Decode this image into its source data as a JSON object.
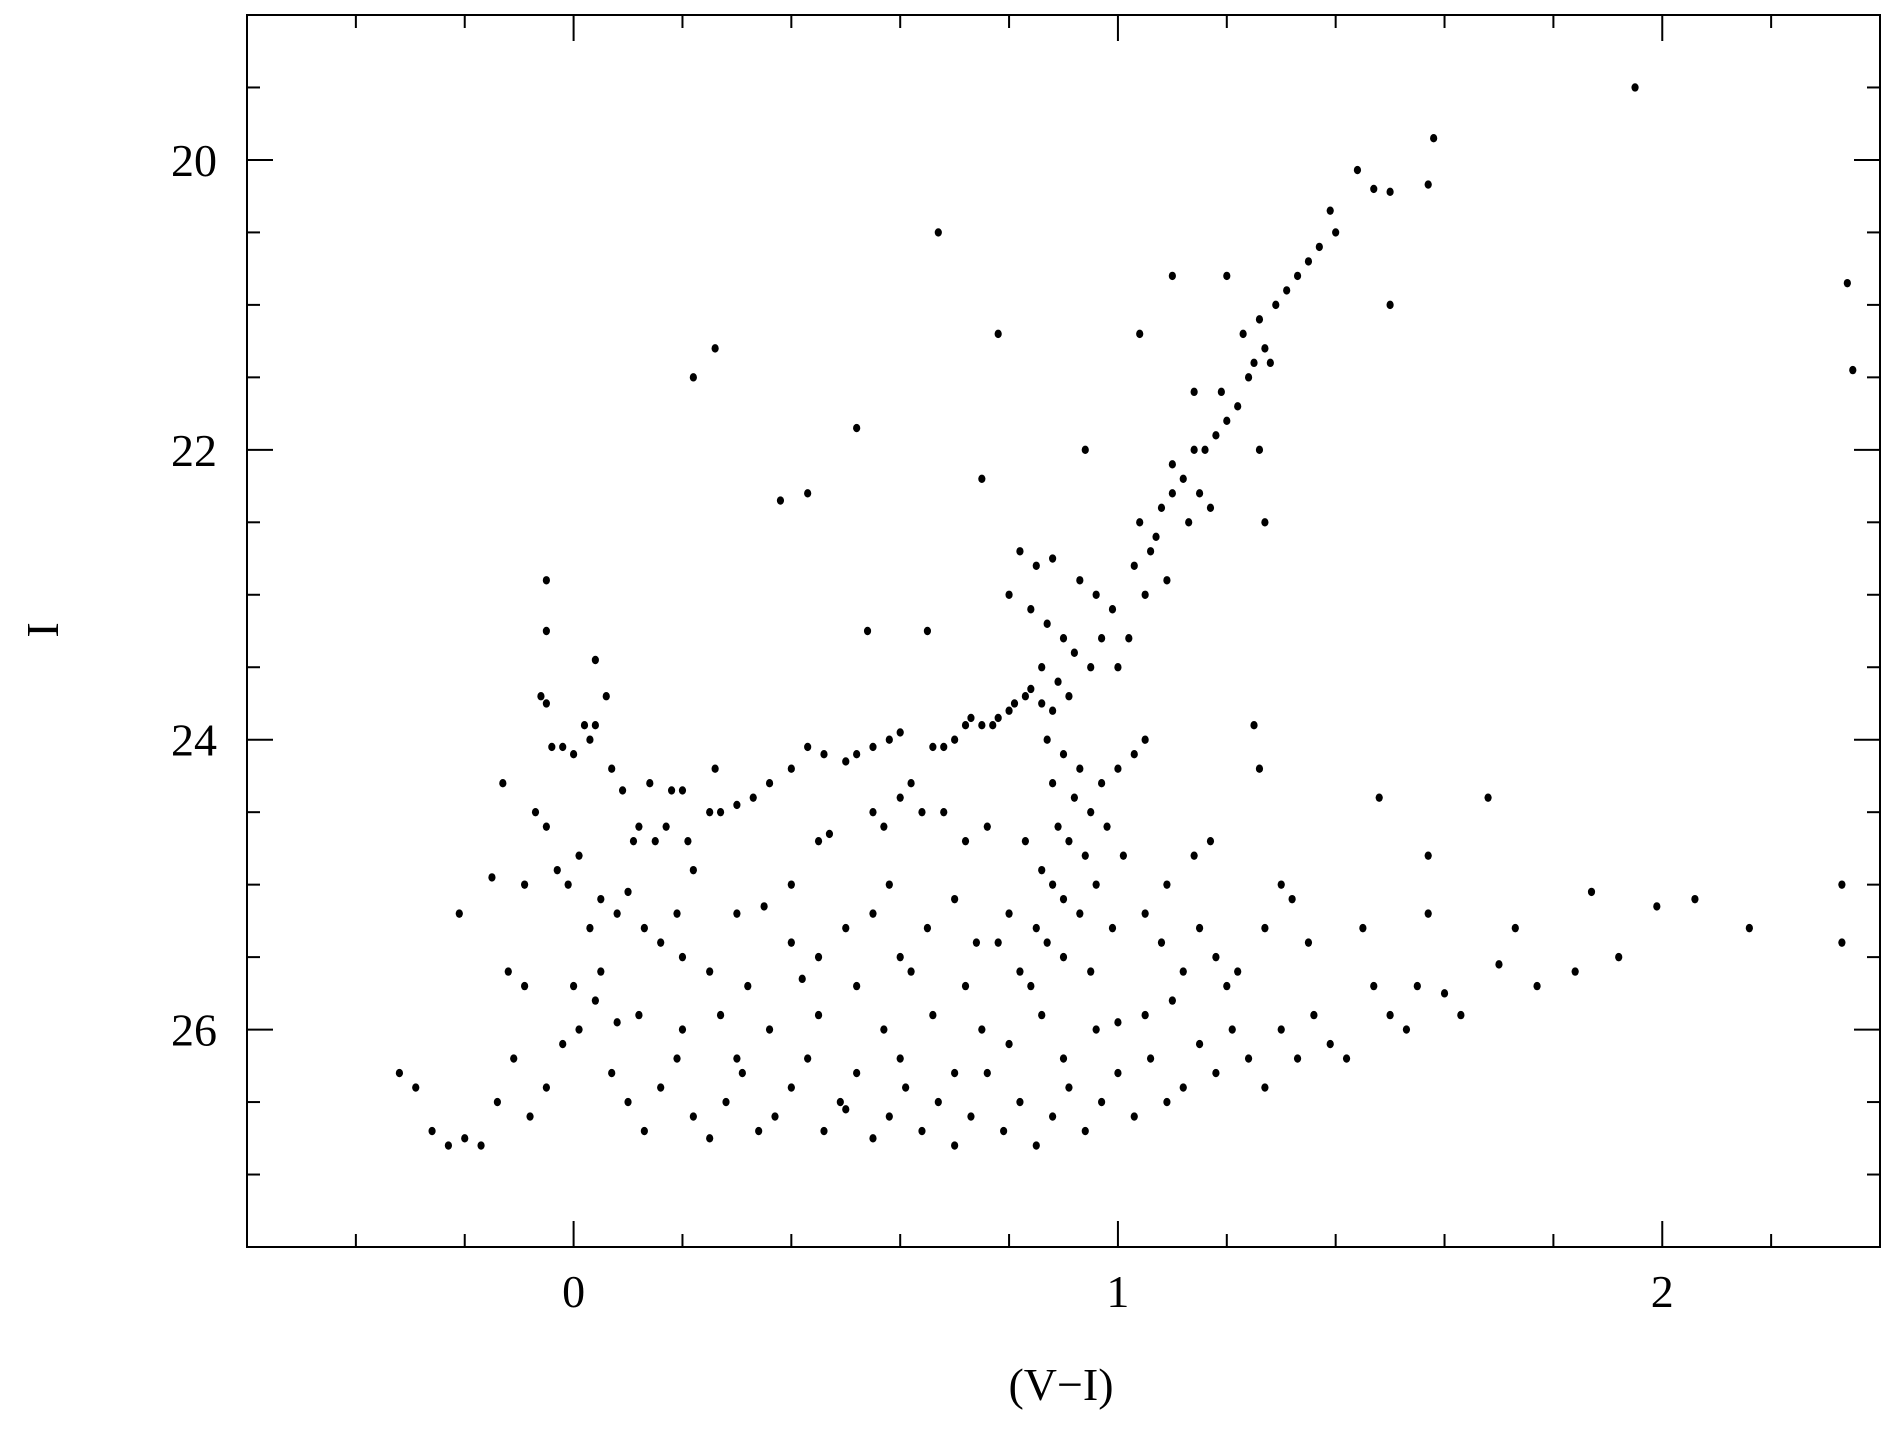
{
  "chart_data": {
    "type": "scatter",
    "xlabel": "(V−I)",
    "ylabel": "I",
    "xlim": [
      -0.6,
      2.4
    ],
    "ylim": [
      27.5,
      19.0
    ],
    "xticks": [
      0,
      1,
      2
    ],
    "yticks": [
      20,
      22,
      24,
      26
    ],
    "xminorticks": [
      -0.4,
      -0.2,
      0.2,
      0.4,
      0.6,
      0.8,
      1.2,
      1.4,
      1.6,
      1.8,
      2.2
    ],
    "yminorticks": [
      19.5,
      20.5,
      21,
      21.5,
      22.5,
      23,
      23.5,
      24.5,
      25,
      25.5,
      26.5,
      27
    ],
    "series": [
      {
        "color": "#000000",
        "x": [
          1.0,
          1.02,
          1.05,
          1.03,
          1.07,
          1.08,
          1.1,
          1.12,
          1.1,
          1.14,
          1.13,
          1.06,
          1.09,
          1.15,
          1.16,
          1.18,
          1.2,
          1.22,
          1.19,
          1.24,
          1.25,
          1.27,
          1.26,
          1.29,
          1.31,
          1.33,
          1.35,
          1.37,
          1.4,
          1.39,
          1.44,
          1.47,
          1.5,
          1.57,
          1.58,
          1.14,
          1.23,
          1.28,
          1.17,
          1.04,
          1.95,
          0.67,
          1.1,
          1.2,
          0.78,
          0.22,
          0.26,
          1.04,
          0.52,
          0.38,
          0.43,
          0.75,
          0.94,
          2.34,
          2.35,
          1.5,
          1.27,
          1.26,
          -0.05,
          -0.05,
          0.04,
          0.54,
          0.65,
          1.25,
          1.26,
          1.48,
          1.68,
          0.82,
          0.85,
          0.88,
          0.8,
          0.84,
          0.87,
          0.9,
          0.92,
          0.86,
          0.89,
          0.83,
          0.86,
          0.88,
          0.84,
          0.91,
          0.95,
          0.97,
          0.99,
          0.96,
          0.93,
          0.8,
          0.78,
          0.75,
          0.72,
          0.7,
          0.68,
          0.66,
          0.73,
          0.77,
          0.81,
          0.6,
          0.58,
          0.55,
          0.52,
          0.5,
          0.46,
          0.43,
          0.4,
          0.36,
          0.33,
          0.3,
          0.27,
          0.25,
          0.26,
          0.45,
          0.47,
          0.55,
          0.57,
          0.62,
          0.64,
          -0.06,
          -0.05,
          -0.04,
          -0.02,
          0.0,
          0.02,
          0.04,
          0.06,
          0.03,
          -0.13,
          0.07,
          0.09,
          0.14,
          0.18,
          0.2,
          0.12,
          0.15,
          0.17,
          0.21,
          0.22,
          -0.07,
          -0.05,
          -0.03,
          -0.01,
          0.01,
          0.05,
          0.08,
          0.11,
          0.19,
          -0.09,
          -0.15,
          0.03,
          0.1,
          0.13,
          0.16,
          0.87,
          0.9,
          0.93,
          0.88,
          0.92,
          0.95,
          0.89,
          0.91,
          0.94,
          0.86,
          0.88,
          0.9,
          0.93,
          0.85,
          0.87,
          0.9,
          0.82,
          0.84,
          0.97,
          1.0,
          1.03,
          1.05,
          0.98,
          1.01,
          0.96,
          0.99,
          0.8,
          0.83,
          0.78,
          0.95,
          0.3,
          0.35,
          0.4,
          0.45,
          0.5,
          0.55,
          0.6,
          0.65,
          0.7,
          0.74,
          0.25,
          0.32,
          0.42,
          0.52,
          0.62,
          0.72,
          1.05,
          1.08,
          1.12,
          1.15,
          1.18,
          1.2,
          1.22,
          1.09,
          1.14,
          1.17,
          1.1,
          1.3,
          1.32,
          1.27,
          1.35,
          0.68,
          0.72,
          0.76,
          0.6,
          0.58,
          0.4,
          0.2,
          0.05,
          0.0,
          -0.32,
          -0.29,
          -0.26,
          -0.23,
          -0.2,
          -0.17,
          -0.14,
          -0.11,
          -0.08,
          -0.05,
          -0.02,
          0.01,
          0.04,
          0.07,
          0.1,
          0.13,
          0.16,
          0.19,
          0.22,
          0.25,
          0.28,
          0.31,
          0.34,
          0.37,
          0.4,
          0.43,
          0.46,
          0.49,
          0.52,
          0.55,
          0.58,
          0.61,
          0.64,
          0.67,
          0.7,
          0.73,
          0.76,
          0.79,
          0.82,
          0.85,
          0.88,
          0.91,
          0.94,
          0.97,
          1.0,
          1.03,
          1.06,
          1.09,
          1.12,
          1.15,
          1.18,
          1.21,
          1.24,
          1.27,
          1.3,
          1.33,
          1.36,
          1.39,
          0.12,
          0.27,
          0.36,
          0.45,
          0.57,
          0.66,
          0.75,
          0.86,
          0.96,
          1.05,
          0.3,
          0.5,
          0.6,
          0.7,
          0.8,
          0.9,
          1.0,
          0.2,
          0.08,
          -0.12,
          -0.09,
          -0.21,
          1.42,
          1.45,
          1.47,
          1.5,
          1.53,
          1.55,
          1.57,
          1.57,
          1.6,
          1.63,
          1.7,
          1.73,
          1.77,
          1.84,
          1.87,
          1.92,
          1.99,
          2.06,
          2.16,
          2.33,
          2.33
        ],
        "values": [
          23.5,
          23.3,
          23.0,
          22.8,
          22.6,
          22.4,
          22.3,
          22.2,
          22.1,
          22.0,
          22.5,
          22.7,
          22.9,
          22.3,
          22.0,
          21.9,
          21.8,
          21.7,
          21.6,
          21.5,
          21.4,
          21.3,
          21.1,
          21.0,
          20.9,
          20.8,
          20.7,
          20.6,
          20.5,
          20.35,
          20.07,
          20.2,
          20.22,
          20.17,
          19.85,
          21.6,
          21.2,
          21.4,
          22.4,
          22.5,
          19.5,
          20.5,
          20.8,
          20.8,
          21.2,
          21.5,
          21.3,
          21.2,
          21.85,
          22.35,
          22.3,
          22.2,
          22.0,
          20.85,
          21.45,
          21.0,
          22.5,
          22.0,
          22.9,
          23.25,
          23.45,
          23.25,
          23.25,
          23.9,
          24.2,
          24.4,
          24.4,
          22.7,
          22.8,
          22.75,
          23.0,
          23.1,
          23.2,
          23.3,
          23.4,
          23.5,
          23.6,
          23.7,
          23.75,
          23.8,
          23.65,
          23.7,
          23.5,
          23.3,
          23.1,
          23.0,
          22.9,
          23.8,
          23.85,
          23.9,
          23.9,
          24.0,
          24.05,
          24.05,
          23.85,
          23.9,
          23.75,
          23.95,
          24.0,
          24.05,
          24.1,
          24.15,
          24.1,
          24.05,
          24.2,
          24.3,
          24.4,
          24.45,
          24.5,
          24.5,
          24.2,
          24.7,
          24.65,
          24.5,
          24.6,
          24.3,
          24.5,
          23.7,
          23.75,
          24.05,
          24.05,
          24.1,
          23.9,
          23.9,
          23.7,
          24.0,
          24.3,
          24.2,
          24.35,
          24.3,
          24.35,
          24.35,
          24.6,
          24.7,
          24.6,
          24.7,
          24.9,
          24.5,
          24.6,
          24.9,
          25.0,
          24.8,
          25.1,
          25.2,
          24.7,
          25.2,
          25.0,
          24.95,
          25.3,
          25.05,
          25.3,
          25.4,
          24.0,
          24.1,
          24.2,
          24.3,
          24.4,
          24.5,
          24.6,
          24.7,
          24.8,
          24.9,
          25.0,
          25.1,
          25.2,
          25.3,
          25.4,
          25.5,
          25.6,
          25.7,
          24.3,
          24.2,
          24.1,
          24.0,
          24.6,
          24.8,
          25.0,
          25.3,
          25.2,
          24.7,
          25.4,
          25.6,
          25.2,
          25.15,
          25.4,
          25.5,
          25.3,
          25.2,
          25.5,
          25.3,
          25.1,
          25.4,
          25.6,
          25.7,
          25.65,
          25.7,
          25.6,
          25.7,
          25.2,
          25.4,
          25.6,
          25.3,
          25.5,
          25.7,
          25.6,
          25.0,
          24.8,
          24.7,
          25.8,
          25.0,
          25.1,
          25.3,
          25.4,
          24.5,
          24.7,
          24.6,
          24.4,
          25.0,
          25.0,
          25.5,
          25.6,
          25.7,
          26.3,
          26.4,
          26.7,
          26.8,
          26.75,
          26.8,
          26.5,
          26.2,
          26.6,
          26.4,
          26.1,
          26.0,
          25.8,
          26.3,
          26.5,
          26.7,
          26.4,
          26.2,
          26.6,
          26.75,
          26.5,
          26.3,
          26.7,
          26.6,
          26.4,
          26.2,
          26.7,
          26.5,
          26.3,
          26.75,
          26.6,
          26.4,
          26.7,
          26.5,
          26.8,
          26.6,
          26.3,
          26.7,
          26.5,
          26.8,
          26.6,
          26.4,
          26.7,
          26.5,
          26.3,
          26.6,
          26.2,
          26.5,
          26.4,
          26.1,
          26.3,
          26.0,
          26.2,
          26.4,
          26.0,
          26.2,
          25.9,
          26.1,
          25.9,
          25.9,
          26.0,
          25.9,
          26.0,
          25.9,
          26.0,
          25.9,
          26.0,
          25.9,
          26.2,
          26.55,
          26.2,
          26.3,
          26.1,
          26.2,
          25.95,
          26.0,
          25.95,
          25.6,
          25.7,
          25.2,
          26.2,
          25.3,
          25.7,
          25.9,
          26.0,
          25.7,
          25.2,
          24.8,
          25.75,
          25.9,
          25.55,
          25.3,
          25.7,
          25.6,
          25.05,
          25.5,
          25.15,
          25.1,
          25.3,
          25.4,
          25.0
        ]
      }
    ]
  }
}
